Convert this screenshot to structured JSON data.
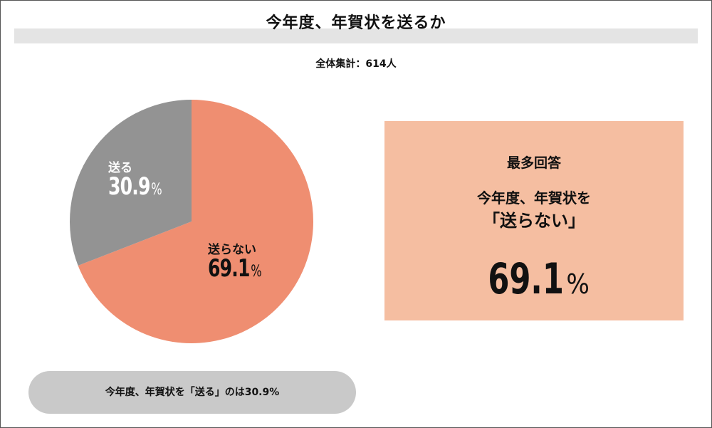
{
  "header": {
    "title": "今年度、年賀状を送るか",
    "subtitle": "全体集計：614人"
  },
  "chart_data": {
    "type": "pie",
    "slices": [
      {
        "label": "送る",
        "value": 30.9,
        "value_label": "30.9",
        "color": "#939393"
      },
      {
        "label": "送らない",
        "value": 69.1,
        "value_label": "69.1",
        "color": "#ef8e71"
      }
    ],
    "unit": "%"
  },
  "summary": {
    "heading": "最多回答",
    "line1": "今年度、年賀状を",
    "line2": "「送らない」",
    "value": "69.1",
    "unit": "%",
    "background": "#f5bea1"
  },
  "note": {
    "text": "今年度、年賀状を「送る」のは30.9%",
    "background": "#c9c9c9"
  }
}
